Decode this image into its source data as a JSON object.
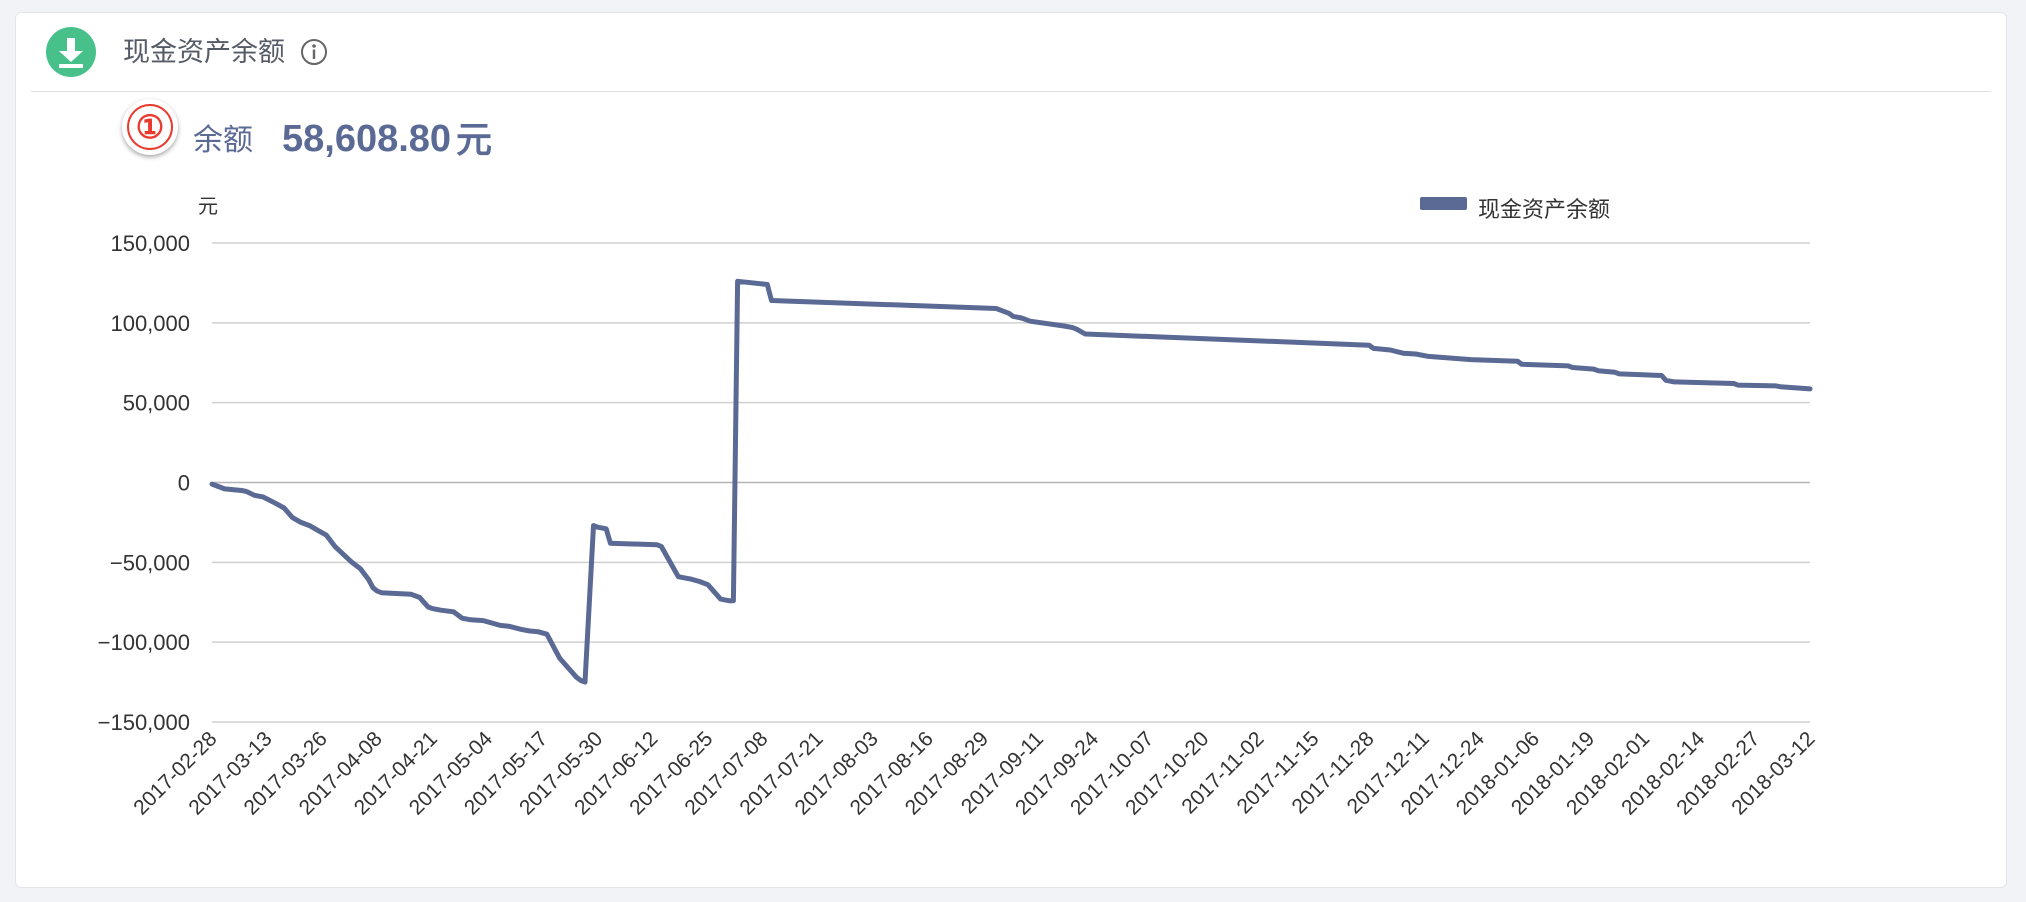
{
  "header": {
    "title": "现金资产余额",
    "download_icon": "download-icon",
    "info_icon": "info-icon"
  },
  "summary": {
    "badge": "①",
    "label": "余额",
    "value": "58,608.80",
    "unit": "元"
  },
  "colors": {
    "series": "#5a6a94",
    "accent_green": "#48c08a",
    "badge_red": "#ea3a2e",
    "grid": "#d0d0d0"
  },
  "chart_data": {
    "type": "line",
    "title": "",
    "xlabel": "",
    "ylabel": "元",
    "ylim": [
      -150000,
      150000
    ],
    "yticks": [
      150000,
      100000,
      50000,
      0,
      -50000,
      -100000,
      -150000
    ],
    "ytick_labels": [
      "150,000",
      "100,000",
      "50,000",
      "0",
      "−50,000",
      "−100,000",
      "−150,000"
    ],
    "xtick_labels": [
      "2017-02-28",
      "2017-03-13",
      "2017-03-26",
      "2017-04-08",
      "2017-04-21",
      "2017-05-04",
      "2017-05-17",
      "2017-05-30",
      "2017-06-12",
      "2017-06-25",
      "2017-07-08",
      "2017-07-21",
      "2017-08-03",
      "2017-08-16",
      "2017-08-29",
      "2017-09-11",
      "2017-09-24",
      "2017-10-07",
      "2017-10-20",
      "2017-11-02",
      "2017-11-15",
      "2017-11-28",
      "2017-12-11",
      "2017-12-24",
      "2018-01-06",
      "2018-01-19",
      "2018-02-01",
      "2018-02-14",
      "2018-02-27",
      "2018-03-12"
    ],
    "grid": true,
    "legend_position": "top-right",
    "series": [
      {
        "name": "现金资产余额",
        "x": [
          "2017-02-28",
          "2017-03-03",
          "2017-03-07",
          "2017-03-08",
          "2017-03-10",
          "2017-03-12",
          "2017-03-15",
          "2017-03-17",
          "2017-03-19",
          "2017-03-21",
          "2017-03-23",
          "2017-03-25",
          "2017-03-27",
          "2017-03-29",
          "2017-03-31",
          "2017-04-02",
          "2017-04-04",
          "2017-04-06",
          "2017-04-07",
          "2017-04-08",
          "2017-04-09",
          "2017-04-16",
          "2017-04-18",
          "2017-04-19",
          "2017-04-20",
          "2017-04-21",
          "2017-04-23",
          "2017-04-26",
          "2017-04-28",
          "2017-04-30",
          "2017-05-03",
          "2017-05-05",
          "2017-05-07",
          "2017-05-09",
          "2017-05-12",
          "2017-05-14",
          "2017-05-16",
          "2017-05-18",
          "2017-05-21",
          "2017-05-24",
          "2017-05-25",
          "2017-05-26",
          "2017-05-27",
          "2017-05-29",
          "2017-05-30",
          "2017-06-01",
          "2017-06-02",
          "2017-06-13",
          "2017-06-14",
          "2017-06-18",
          "2017-06-20",
          "2017-06-21",
          "2017-06-23",
          "2017-06-25",
          "2017-06-27",
          "2017-06-28",
          "2017-06-29",
          "2017-06-30",
          "2017-07-01",
          "2017-07-02",
          "2017-07-09",
          "2017-07-10",
          "2017-09-01",
          "2017-09-02",
          "2017-09-04",
          "2017-09-05",
          "2017-09-07",
          "2017-09-08",
          "2017-09-09",
          "2017-09-17",
          "2017-09-19",
          "2017-09-20",
          "2017-09-22",
          "2017-11-28",
          "2017-11-29",
          "2017-12-03",
          "2017-12-06",
          "2017-12-09",
          "2017-12-12",
          "2017-12-22",
          "2018-01-02",
          "2018-01-03",
          "2018-01-14",
          "2018-01-15",
          "2018-01-20",
          "2018-01-21",
          "2018-01-25",
          "2018-01-26",
          "2018-02-05",
          "2018-02-06",
          "2018-02-08",
          "2018-02-22",
          "2018-02-23",
          "2018-03-04",
          "2018-03-05",
          "2018-03-12"
        ],
        "y": [
          -1000,
          -4000,
          -5000,
          -5500,
          -8000,
          -9000,
          -13000,
          -16000,
          -22000,
          -25000,
          -27000,
          -30000,
          -33000,
          -40000,
          -45000,
          -50000,
          -54000,
          -61000,
          -66000,
          -68000,
          -69000,
          -70000,
          -72000,
          -75000,
          -78000,
          -79000,
          -80000,
          -81000,
          -85000,
          -86000,
          -86500,
          -88000,
          -89500,
          -90000,
          -92000,
          -93000,
          -93500,
          -95000,
          -110000,
          -119000,
          -122000,
          -124000,
          -125000,
          -27000,
          -28000,
          -29000,
          -38000,
          -39000,
          -40000,
          -59000,
          -60000,
          -60500,
          -62000,
          -64000,
          -70000,
          -73000,
          -73500,
          -74000,
          -74000,
          126000,
          124000,
          114000,
          109000,
          108000,
          106000,
          104000,
          103000,
          102000,
          101000,
          98000,
          97000,
          96000,
          93000,
          86000,
          84000,
          83000,
          81000,
          80500,
          79000,
          77000,
          76000,
          74000,
          73000,
          72000,
          71000,
          70000,
          69000,
          68000,
          67000,
          64000,
          63000,
          62000,
          61000,
          60500,
          60000,
          58608.8
        ]
      }
    ]
  }
}
